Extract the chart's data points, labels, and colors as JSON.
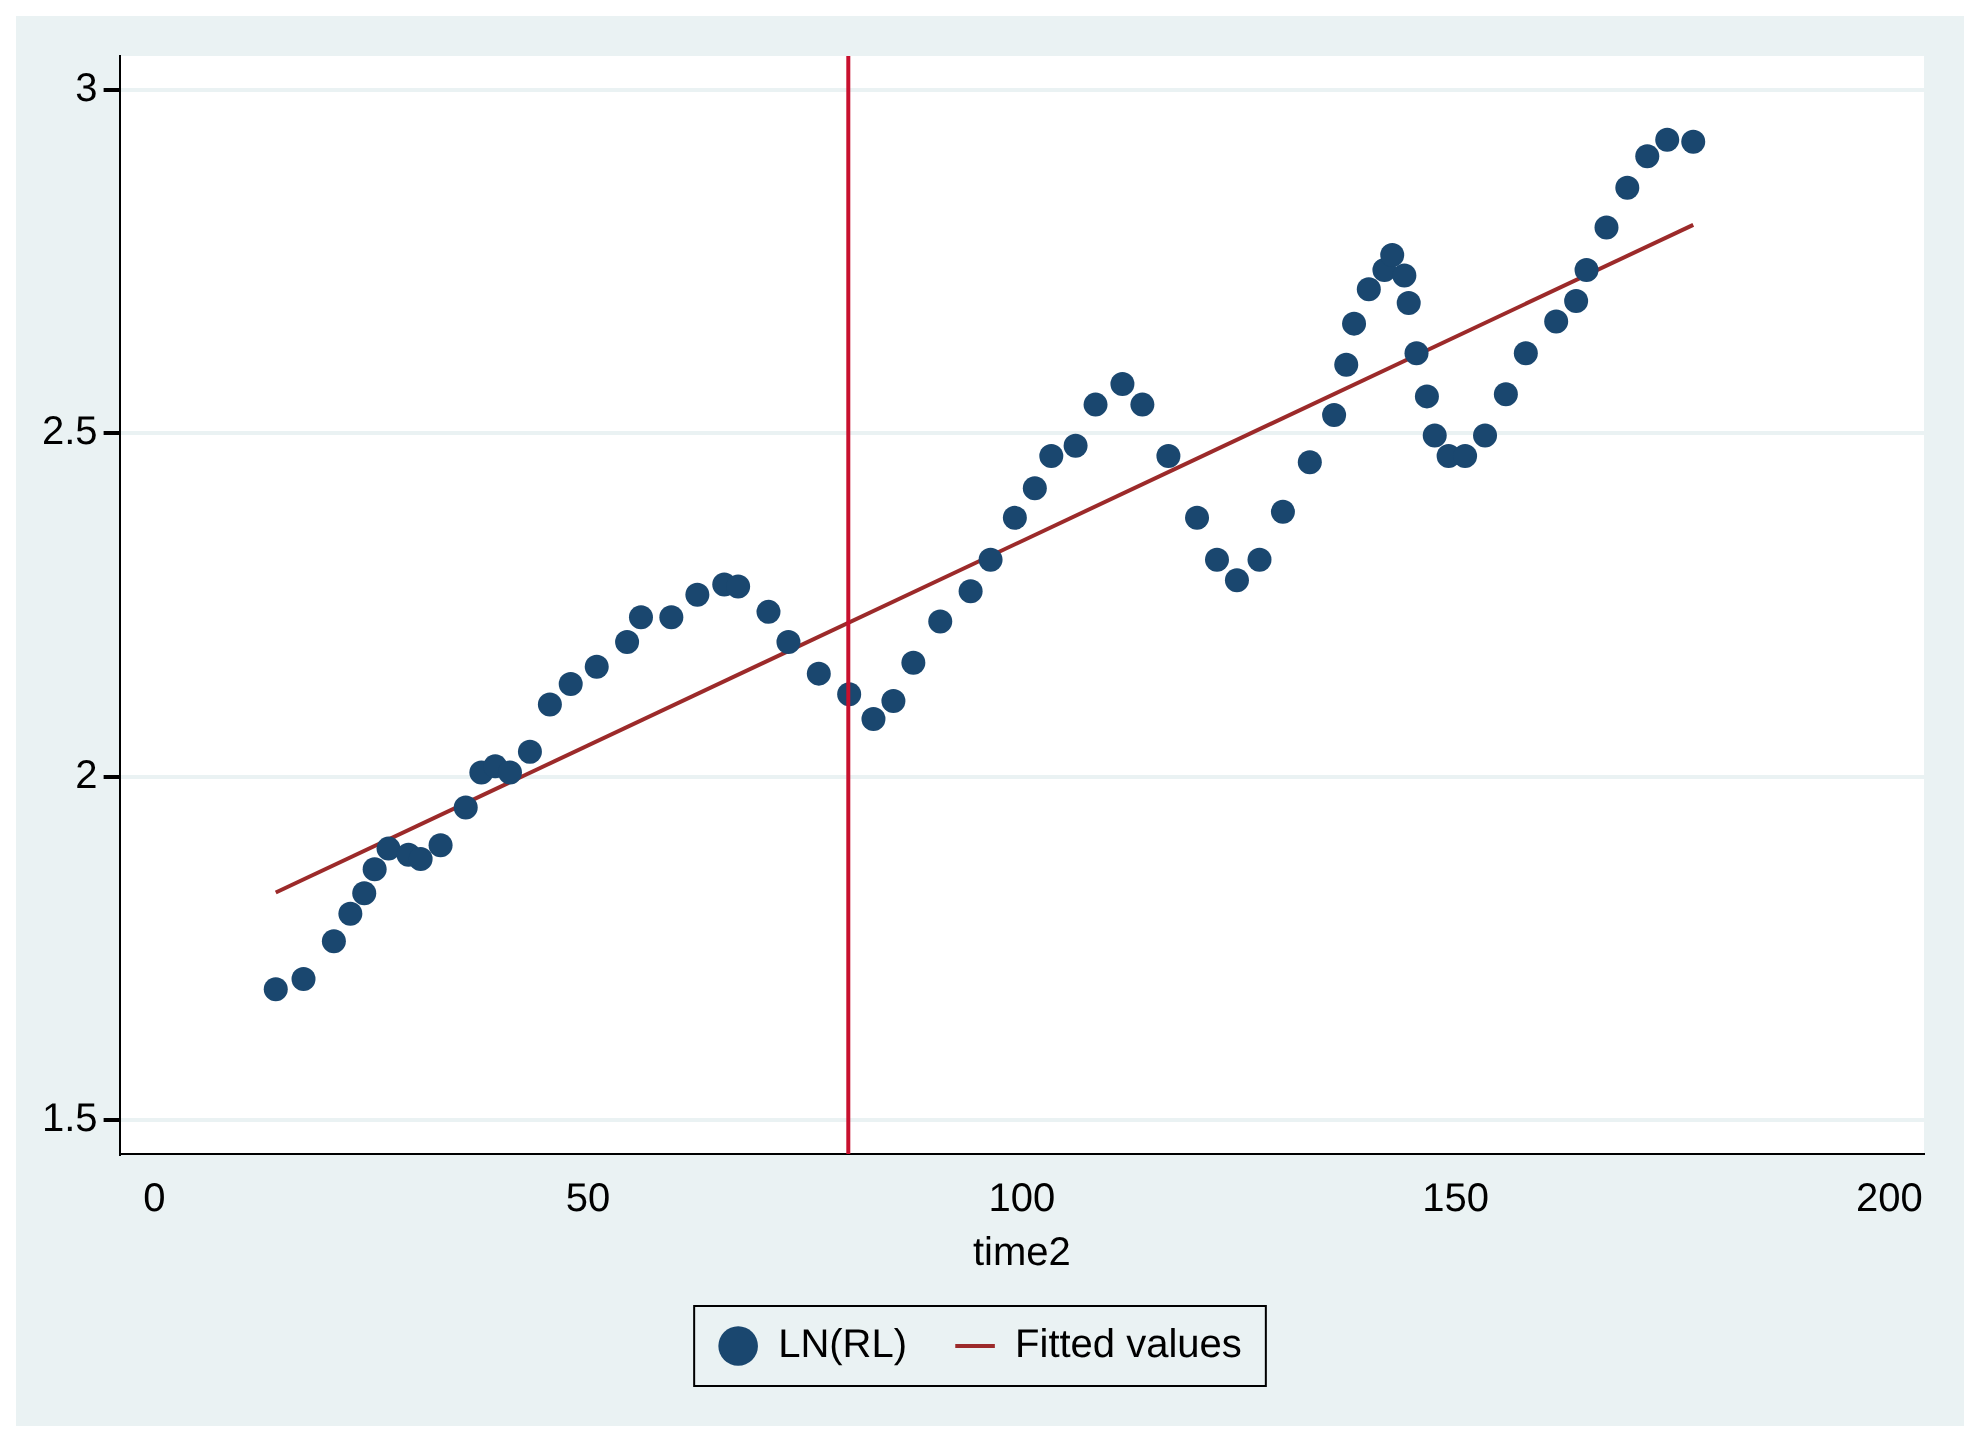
{
  "chart_data": {
    "type": "scatter",
    "xlabel": "time2",
    "xlim": [
      -4,
      204
    ],
    "ylim": [
      1.45,
      3.05
    ],
    "xticks": [
      0,
      50,
      100,
      150,
      200
    ],
    "yticks": [
      1.5,
      2,
      2.5,
      3
    ],
    "grid": "y",
    "legend": "bottom",
    "series": [
      {
        "name": "LN(RL)",
        "marker": "circle",
        "color": "#1a476f",
        "x": [
          14,
          17.2,
          20.7,
          22.6,
          24.2,
          25.4,
          27,
          29.3,
          30.7,
          33,
          35.9,
          37.7,
          39.3,
          41,
          43.3,
          45.6,
          48,
          51,
          54.5,
          56.1,
          59.6,
          62.6,
          65.7,
          67.3,
          70.8,
          73.1,
          76.6,
          80.1,
          82.9,
          85.2,
          87.5,
          90.6,
          94.1,
          96.4,
          99.2,
          101.5,
          103.4,
          106.2,
          108.5,
          111.6,
          113.9,
          116.9,
          120.2,
          122.5,
          124.8,
          127.4,
          130.1,
          133.2,
          136,
          137.4,
          138.3,
          140,
          141.8,
          142.7,
          144.1,
          144.6,
          145.5,
          146.7,
          147.6,
          149.2,
          151.1,
          153.4,
          155.8,
          158.1,
          161.6,
          163.9,
          165.1,
          167.4,
          169.8,
          172.1,
          174.4,
          177.4
        ],
        "values": [
          1.69,
          1.705,
          1.76,
          1.8,
          1.83,
          1.865,
          1.895,
          1.886,
          1.88,
          1.9,
          1.955,
          2.006,
          2.015,
          2.006,
          2.036,
          2.105,
          2.135,
          2.16,
          2.196,
          2.232,
          2.232,
          2.265,
          2.28,
          2.277,
          2.24,
          2.196,
          2.15,
          2.12,
          2.084,
          2.11,
          2.166,
          2.226,
          2.27,
          2.316,
          2.377,
          2.42,
          2.467,
          2.482,
          2.542,
          2.572,
          2.542,
          2.467,
          2.377,
          2.316,
          2.286,
          2.316,
          2.386,
          2.458,
          2.527,
          2.6,
          2.66,
          2.71,
          2.738,
          2.76,
          2.73,
          2.69,
          2.617,
          2.554,
          2.497,
          2.467,
          2.467,
          2.497,
          2.557,
          2.617,
          2.663,
          2.693,
          2.738,
          2.8,
          2.858,
          2.904,
          2.928,
          2.925
        ]
      },
      {
        "name": "Fitted values",
        "type": "line",
        "marker": "none",
        "color": "#9c2a2a",
        "x": [
          14,
          177.4
        ],
        "values": [
          1.831,
          2.804
        ]
      }
    ],
    "ref_lines": [
      {
        "axis": "x",
        "value": 80,
        "color": "#c8102e"
      }
    ]
  }
}
